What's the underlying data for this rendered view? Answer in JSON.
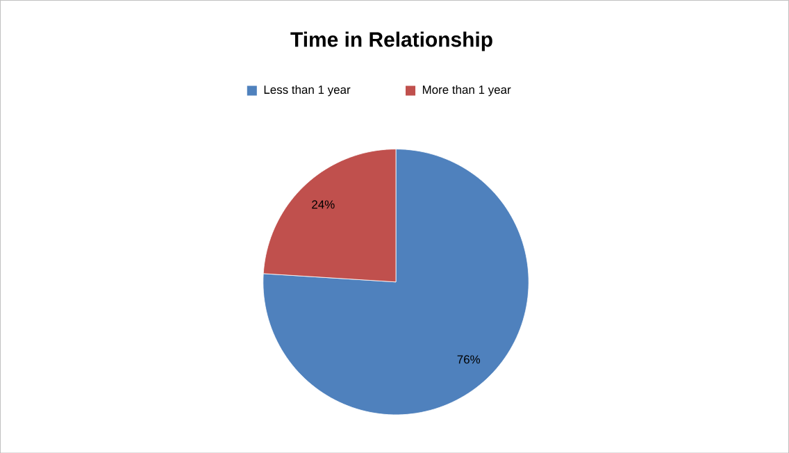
{
  "chart_data": {
    "type": "pie",
    "title": "Time in Relationship",
    "categories": [
      "Less than 1 year",
      "More than 1 year"
    ],
    "values": [
      76,
      24
    ],
    "colors": [
      "#4f81bd",
      "#c0504d"
    ],
    "value_labels": [
      "76%",
      "24%"
    ],
    "legend": "top"
  }
}
